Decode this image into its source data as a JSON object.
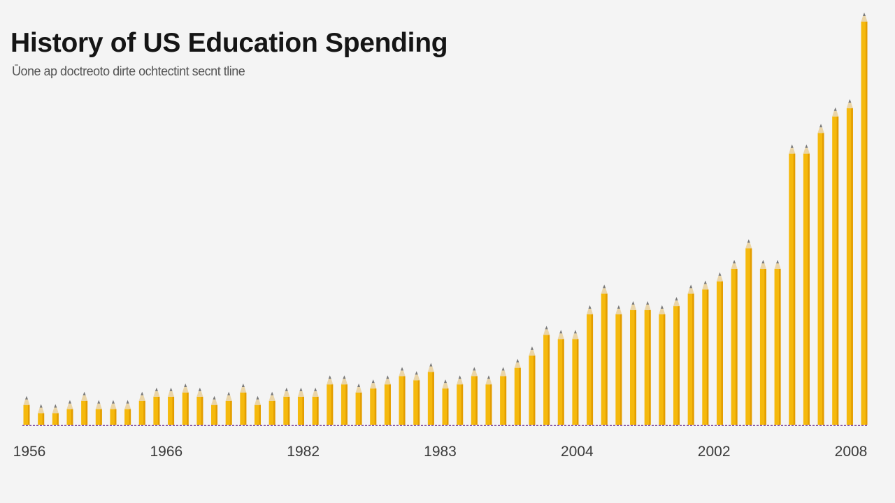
{
  "chart_data": {
    "type": "bar",
    "title": "History of US Education Spending",
    "subtitle": "Ūone ap doctreoto dirte ochtectint secnt tline",
    "xlabel": "",
    "ylabel": "",
    "ylim": [
      0,
      100
    ],
    "grid": false,
    "legend": "none",
    "x_tick_labels": [
      "1956",
      "1966",
      "1982",
      "1983",
      "2004",
      "2002",
      "2008"
    ],
    "series": [
      {
        "values": [
          7,
          5,
          5,
          6,
          8,
          6,
          6,
          6,
          8,
          9,
          9,
          10,
          9,
          7,
          8,
          10,
          7,
          8,
          9,
          9,
          9,
          12,
          12,
          10,
          11,
          12,
          14,
          13,
          15,
          11,
          12,
          14,
          12,
          14,
          16,
          19,
          24,
          23,
          23,
          29,
          34,
          29,
          30,
          30,
          29,
          31,
          34,
          35,
          37,
          40,
          45,
          40,
          40,
          68,
          68,
          73,
          77,
          79,
          100
        ]
      }
    ],
    "colors": {
      "bar_body": "#f5b90d",
      "bar_edge": "#e39d00",
      "wood": "#ead5a8",
      "graphite": "#777777",
      "baseline": "#8a5aa8"
    }
  }
}
